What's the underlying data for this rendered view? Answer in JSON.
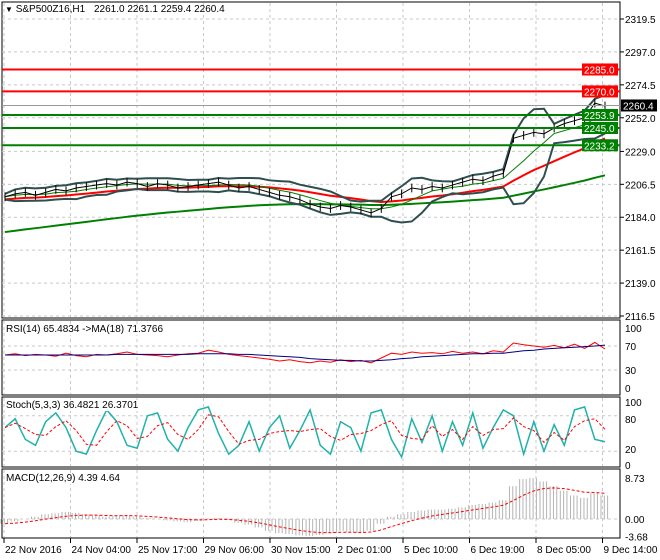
{
  "header": {
    "symbol": "S&P500Z16,H1",
    "ohlc": "2261.0 2261.1 2259.4 2260.4"
  },
  "price_axis": [
    "2319.5",
    "2297.0",
    "2274.5",
    "2252.0",
    "2229.0",
    "2206.5",
    "2184.0",
    "2161.5",
    "2139.0",
    "2116.5"
  ],
  "levels": [
    {
      "value": "2285.0",
      "color": "#ff0000"
    },
    {
      "value": "2270.0",
      "color": "#ff0000"
    },
    {
      "value": "2253.9",
      "color": "#008000"
    },
    {
      "value": "2245.0",
      "color": "#008000"
    },
    {
      "value": "2233.2",
      "color": "#008000"
    }
  ],
  "current_price": "2260.4",
  "rsi": {
    "title": "RSI(14) 65.4834  ->MA(18) 71.3766",
    "ticks": [
      "100",
      "70",
      "30",
      "0"
    ]
  },
  "stoch": {
    "title": "Stoch(5,3,3) 36.4821 26.3701",
    "ticks": [
      "100",
      "80",
      "20",
      "0"
    ]
  },
  "macd": {
    "title": "MACD(12,26,9) 4.39 4.64",
    "ticks": [
      "8.73",
      "0.00",
      "-3.68"
    ]
  },
  "time_axis": [
    "22 Nov 2016",
    "24 Nov 04:00",
    "25 Nov 17:00",
    "29 Nov 06:00",
    "30 Nov 15:00",
    "2 Dec 01:00",
    "5 Dec 10:00",
    "6 Dec 19:00",
    "8 Dec 05:00",
    "9 Dec 14:00"
  ],
  "chart_data": {
    "type": "line",
    "ylim": [
      2116.5,
      2319.5
    ],
    "close": [
      2198,
      2200,
      2201,
      2199,
      2201,
      2203,
      2202,
      2204,
      2205,
      2206,
      2207,
      2206,
      2208,
      2207,
      2205,
      2207,
      2206,
      2204,
      2205,
      2206,
      2207,
      2208,
      2206,
      2204,
      2205,
      2203,
      2201,
      2199,
      2198,
      2196,
      2193,
      2191,
      2190,
      2192,
      2191,
      2189,
      2187,
      2190,
      2198,
      2200,
      2204,
      2203,
      2205,
      2204,
      2206,
      2208,
      2210,
      2209,
      2212,
      2214,
      2238,
      2240,
      2242,
      2241,
      2245,
      2248,
      2250,
      2252,
      2262,
      2260
    ],
    "rsi": [
      55,
      57,
      54,
      56,
      55,
      53,
      58,
      54,
      52,
      56,
      55,
      57,
      60,
      56,
      55,
      54,
      52,
      55,
      57,
      58,
      63,
      60,
      56,
      54,
      52,
      50,
      48,
      45,
      47,
      44,
      42,
      45,
      43,
      47,
      44,
      46,
      42,
      50,
      58,
      56,
      60,
      58,
      59,
      57,
      61,
      58,
      60,
      57,
      62,
      60,
      75,
      72,
      70,
      68,
      71,
      67,
      73,
      66,
      76,
      65
    ],
    "rsi_ma": [
      55,
      55,
      55,
      55,
      55,
      55,
      55,
      55,
      55,
      55,
      55,
      56,
      56,
      56,
      56,
      56,
      56,
      56,
      56,
      57,
      57,
      57,
      57,
      56,
      56,
      55,
      54,
      53,
      52,
      51,
      49,
      48,
      47,
      46,
      46,
      45,
      45,
      46,
      47,
      49,
      50,
      52,
      53,
      54,
      55,
      56,
      57,
      57,
      58,
      58,
      60,
      62,
      63,
      65,
      66,
      67,
      68,
      69,
      70,
      71.4
    ],
    "stoch": [
      60,
      75,
      40,
      30,
      70,
      85,
      60,
      20,
      15,
      55,
      90,
      70,
      30,
      25,
      80,
      85,
      40,
      20,
      60,
      90,
      95,
      50,
      15,
      30,
      70,
      20,
      60,
      80,
      25,
      55,
      90,
      30,
      15,
      70,
      60,
      20,
      85,
      90,
      40,
      10,
      75,
      35,
      80,
      20,
      70,
      30,
      85,
      25,
      60,
      90,
      80,
      15,
      70,
      20,
      65,
      30,
      90,
      95,
      40,
      36
    ],
    "macd_hist": [
      -1,
      -0.5,
      0,
      0.5,
      1,
      1.2,
      1.5,
      1.3,
      1,
      0.8,
      0.5,
      0.6,
      0.8,
      0.5,
      0.2,
      0,
      -0.3,
      -0.5,
      -0.7,
      -0.4,
      0,
      0.2,
      -0.2,
      -0.8,
      -1.2,
      -1.8,
      -2.5,
      -3,
      -3.2,
      -3.5,
      -3.6,
      -3.4,
      -3,
      -2.5,
      -2.8,
      -3,
      -2.5,
      -1,
      0.5,
      1,
      1.5,
      1.8,
      2,
      2,
      2.2,
      2.5,
      3,
      3.2,
      3.5,
      4,
      7,
      8.5,
      8.7,
      8,
      7,
      6,
      5,
      4.5,
      5.5,
      5
    ]
  }
}
